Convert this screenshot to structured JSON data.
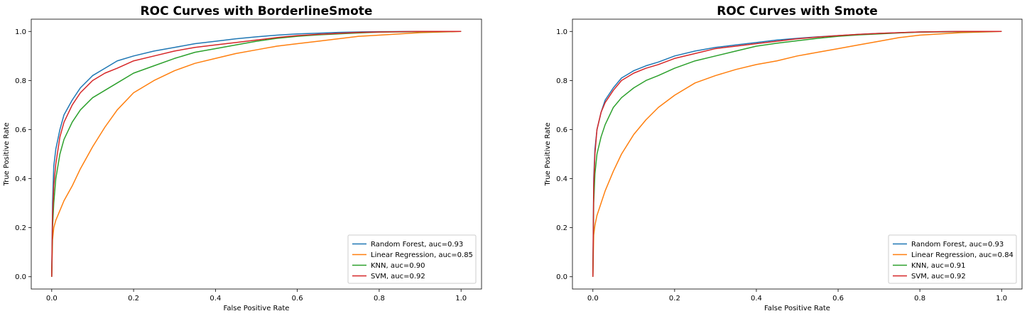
{
  "chart_data": [
    {
      "type": "line",
      "title": "ROC Curves with BorderlineSmote",
      "xlabel": "False Positive Rate",
      "ylabel": "True Positive Rate",
      "xlim": [
        -0.05,
        1.05
      ],
      "ylim": [
        -0.05,
        1.05
      ],
      "xticks": [
        "0.0",
        "0.2",
        "0.4",
        "0.6",
        "0.8",
        "1.0"
      ],
      "yticks": [
        "0.0",
        "0.2",
        "0.4",
        "0.6",
        "0.8",
        "1.0"
      ],
      "grid": false,
      "legend_position": "bottom-right",
      "series": [
        {
          "name": "Random Forest, auc=0.93",
          "color": "#1f77b4",
          "x": [
            0,
            0.002,
            0.005,
            0.01,
            0.02,
            0.03,
            0.05,
            0.07,
            0.1,
            0.13,
            0.16,
            0.2,
            0.25,
            0.3,
            0.35,
            0.4,
            0.45,
            0.5,
            0.55,
            0.6,
            0.65,
            0.7,
            0.75,
            0.8,
            0.9,
            1.0
          ],
          "y": [
            0,
            0.3,
            0.45,
            0.52,
            0.6,
            0.66,
            0.72,
            0.77,
            0.82,
            0.85,
            0.88,
            0.9,
            0.92,
            0.935,
            0.95,
            0.96,
            0.97,
            0.978,
            0.985,
            0.99,
            0.993,
            0.996,
            0.998,
            0.999,
            1.0,
            1.0
          ]
        },
        {
          "name": "Linear Regression, auc=0.85",
          "color": "#ff7f0e",
          "x": [
            0,
            0.002,
            0.005,
            0.01,
            0.02,
            0.03,
            0.05,
            0.07,
            0.1,
            0.13,
            0.16,
            0.2,
            0.25,
            0.3,
            0.35,
            0.4,
            0.45,
            0.5,
            0.55,
            0.6,
            0.65,
            0.7,
            0.75,
            0.8,
            0.9,
            1.0
          ],
          "y": [
            0,
            0.15,
            0.2,
            0.23,
            0.27,
            0.31,
            0.37,
            0.44,
            0.53,
            0.61,
            0.68,
            0.75,
            0.8,
            0.84,
            0.87,
            0.89,
            0.91,
            0.925,
            0.94,
            0.95,
            0.96,
            0.97,
            0.98,
            0.985,
            0.995,
            1.0
          ]
        },
        {
          "name": "KNN, auc=0.90",
          "color": "#2ca02c",
          "x": [
            0,
            0.002,
            0.005,
            0.01,
            0.02,
            0.03,
            0.05,
            0.07,
            0.1,
            0.13,
            0.16,
            0.2,
            0.25,
            0.3,
            0.35,
            0.4,
            0.45,
            0.5,
            0.55,
            0.6,
            0.65,
            0.7,
            0.75,
            0.8,
            0.9,
            1.0
          ],
          "y": [
            0,
            0.2,
            0.3,
            0.4,
            0.5,
            0.56,
            0.63,
            0.68,
            0.73,
            0.76,
            0.79,
            0.83,
            0.86,
            0.89,
            0.915,
            0.93,
            0.945,
            0.96,
            0.972,
            0.98,
            0.986,
            0.99,
            0.994,
            0.997,
            0.999,
            1.0
          ]
        },
        {
          "name": "SVM, auc=0.92",
          "color": "#d62728",
          "x": [
            0,
            0.002,
            0.005,
            0.01,
            0.02,
            0.03,
            0.05,
            0.07,
            0.1,
            0.13,
            0.16,
            0.2,
            0.25,
            0.3,
            0.35,
            0.4,
            0.45,
            0.5,
            0.55,
            0.6,
            0.65,
            0.7,
            0.75,
            0.8,
            0.9,
            1.0
          ],
          "y": [
            0,
            0.25,
            0.37,
            0.46,
            0.57,
            0.63,
            0.7,
            0.75,
            0.8,
            0.83,
            0.85,
            0.88,
            0.9,
            0.92,
            0.935,
            0.945,
            0.955,
            0.965,
            0.975,
            0.983,
            0.988,
            0.992,
            0.996,
            0.998,
            1.0,
            1.0
          ]
        }
      ]
    },
    {
      "type": "line",
      "title": "ROC Curves with Smote",
      "xlabel": "False Positive Rate",
      "ylabel": "True Positive Rate",
      "xlim": [
        -0.05,
        1.05
      ],
      "ylim": [
        -0.05,
        1.05
      ],
      "xticks": [
        "0.0",
        "0.2",
        "0.4",
        "0.6",
        "0.8",
        "1.0"
      ],
      "yticks": [
        "0.0",
        "0.2",
        "0.4",
        "0.6",
        "0.8",
        "1.0"
      ],
      "grid": false,
      "legend_position": "bottom-right",
      "series": [
        {
          "name": "Random Forest, auc=0.93",
          "color": "#1f77b4",
          "x": [
            0,
            0.002,
            0.005,
            0.01,
            0.02,
            0.03,
            0.05,
            0.07,
            0.1,
            0.13,
            0.16,
            0.2,
            0.25,
            0.3,
            0.35,
            0.4,
            0.45,
            0.5,
            0.55,
            0.6,
            0.65,
            0.7,
            0.75,
            0.8,
            0.9,
            1.0
          ],
          "y": [
            0,
            0.4,
            0.52,
            0.6,
            0.67,
            0.72,
            0.77,
            0.81,
            0.84,
            0.86,
            0.875,
            0.9,
            0.92,
            0.935,
            0.945,
            0.955,
            0.965,
            0.972,
            0.978,
            0.983,
            0.988,
            0.992,
            0.995,
            0.998,
            1.0,
            1.0
          ]
        },
        {
          "name": "Linear Regression, auc=0.84",
          "color": "#ff7f0e",
          "x": [
            0,
            0.002,
            0.005,
            0.01,
            0.02,
            0.03,
            0.05,
            0.07,
            0.1,
            0.13,
            0.16,
            0.2,
            0.25,
            0.3,
            0.35,
            0.4,
            0.45,
            0.5,
            0.55,
            0.6,
            0.65,
            0.7,
            0.75,
            0.8,
            0.9,
            1.0
          ],
          "y": [
            0,
            0.17,
            0.21,
            0.25,
            0.3,
            0.35,
            0.43,
            0.5,
            0.58,
            0.64,
            0.69,
            0.74,
            0.79,
            0.82,
            0.845,
            0.865,
            0.88,
            0.9,
            0.915,
            0.93,
            0.945,
            0.96,
            0.975,
            0.985,
            0.995,
            1.0
          ]
        },
        {
          "name": "KNN, auc=0.91",
          "color": "#2ca02c",
          "x": [
            0,
            0.002,
            0.005,
            0.01,
            0.02,
            0.03,
            0.05,
            0.07,
            0.1,
            0.13,
            0.16,
            0.2,
            0.25,
            0.3,
            0.35,
            0.4,
            0.45,
            0.5,
            0.55,
            0.6,
            0.65,
            0.7,
            0.75,
            0.8,
            0.9,
            1.0
          ],
          "y": [
            0,
            0.3,
            0.42,
            0.5,
            0.57,
            0.62,
            0.69,
            0.73,
            0.77,
            0.8,
            0.82,
            0.85,
            0.88,
            0.9,
            0.92,
            0.94,
            0.952,
            0.962,
            0.972,
            0.98,
            0.986,
            0.99,
            0.994,
            0.997,
            0.999,
            1.0
          ]
        },
        {
          "name": "SVM, auc=0.92",
          "color": "#d62728",
          "x": [
            0,
            0.002,
            0.005,
            0.01,
            0.02,
            0.03,
            0.05,
            0.07,
            0.1,
            0.13,
            0.16,
            0.2,
            0.25,
            0.3,
            0.35,
            0.4,
            0.45,
            0.5,
            0.55,
            0.6,
            0.65,
            0.7,
            0.75,
            0.8,
            0.9,
            1.0
          ],
          "y": [
            0,
            0.37,
            0.5,
            0.6,
            0.67,
            0.71,
            0.76,
            0.8,
            0.83,
            0.85,
            0.865,
            0.89,
            0.91,
            0.93,
            0.94,
            0.95,
            0.96,
            0.97,
            0.977,
            0.983,
            0.988,
            0.992,
            0.995,
            0.998,
            1.0,
            1.0
          ]
        }
      ]
    }
  ]
}
